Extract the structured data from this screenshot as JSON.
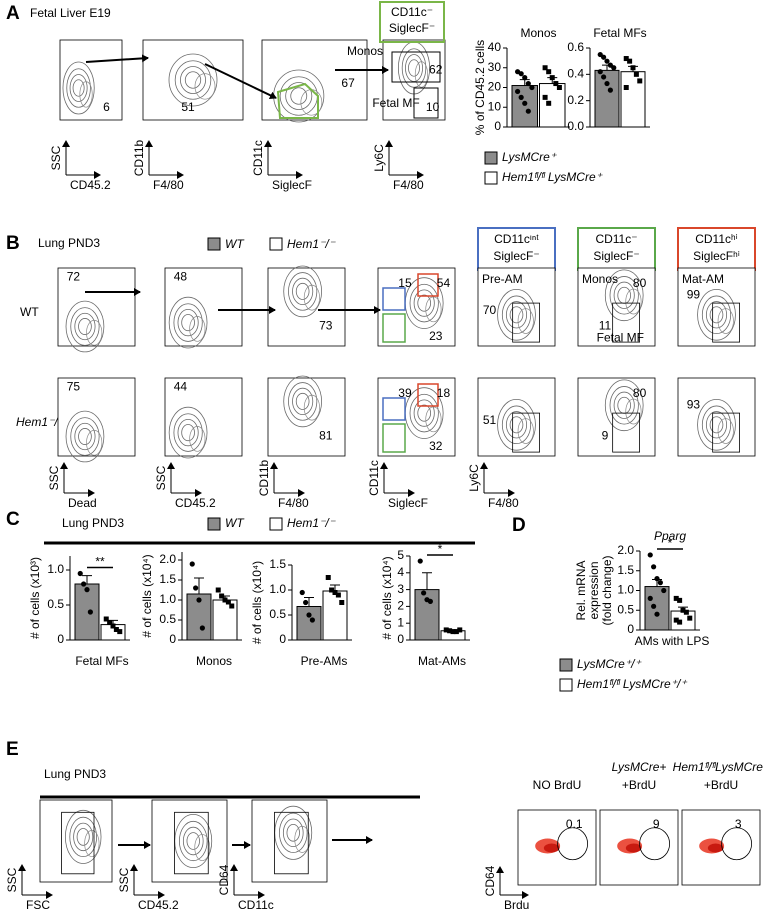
{
  "panel_a": {
    "letter": "A",
    "title": "Fetal Liver  E19",
    "plots": [
      {
        "y": "SSC",
        "x": "CD45.2",
        "gates": [
          6
        ]
      },
      {
        "y": "CD11b",
        "x": "F4/80",
        "gates": [
          51
        ]
      },
      {
        "y": "CD11c",
        "x": "SiglecF",
        "gates": [
          67
        ]
      },
      {
        "y": "Ly6C",
        "x": "F4/80",
        "gates": [
          62,
          10
        ]
      }
    ],
    "population_labels": [
      "Monos",
      "Fetal MF"
    ],
    "box": {
      "lines": [
        "CD11c⁻",
        "SiglecF⁻"
      ],
      "color": "#7ab648"
    }
  },
  "panel_b": {
    "letter": "B",
    "title": "Lung PND3",
    "legend": [
      "WT",
      "Hem1⁻/⁻"
    ],
    "row_labels": [
      "WT",
      "Hem1⁻/⁻"
    ],
    "axes": [
      {
        "y": "SSC",
        "x": "Dead"
      },
      {
        "y": "SSC",
        "x": "CD45.2"
      },
      {
        "y": "CD11b",
        "x": "F4/80"
      },
      {
        "y": "CD11c",
        "x": "SiglecF"
      },
      {
        "y": "Ly6C",
        "x": "F4/80"
      }
    ],
    "boxes": [
      {
        "lines": [
          "CD11cᶦⁿᵗ",
          "SiglecF⁻"
        ],
        "color": "#4a6fc1"
      },
      {
        "lines": [
          "CD11c⁻",
          "SiglecF⁻"
        ],
        "color": "#5aa84a"
      },
      {
        "lines": [
          "CD11cʰⁱ",
          "SiglecFʰⁱ"
        ],
        "color": "#d9472b"
      }
    ],
    "plot_titles": [
      "Pre-AM",
      "Monos",
      "Mat-AM"
    ],
    "fetal_mf": "Fetal MF",
    "gates": [
      [
        [
          72
        ],
        [
          48
        ],
        [
          73
        ],
        [
          15,
          54,
          23
        ],
        [
          70
        ],
        [
          80,
          11
        ],
        [
          99
        ]
      ],
      [
        [
          75
        ],
        [
          44
        ],
        [
          81
        ],
        [
          39,
          18,
          32
        ],
        [
          51
        ],
        [
          80,
          9
        ],
        [
          93
        ]
      ]
    ]
  },
  "panel_c": {
    "letter": "C",
    "title": "Lung PND3"
  },
  "panel_d": {
    "letter": "D"
  },
  "panel_e": {
    "letter": "E",
    "title": "Lung PND3",
    "axes": [
      {
        "y": "SSC",
        "x": "FSC"
      },
      {
        "y": "SSC",
        "x": "CD45.2"
      },
      {
        "y": "CD64",
        "x": "CD11c"
      },
      {
        "y": "CD64",
        "x": "Brdu"
      }
    ],
    "brdu_titles": [
      [
        "NO BrdU"
      ],
      [
        "LysMCre+",
        "+BrdU"
      ],
      [
        "Hem1ᶠˡ/ᶠˡLysMCre⁺",
        "+BrdU"
      ]
    ],
    "gates": [
      0.1,
      9,
      3
    ]
  },
  "chart_data": [
    {
      "type": "bar",
      "title": "Monos",
      "ylabel": [
        "% of CD45.2 cells"
      ],
      "ylim": [
        0,
        40
      ],
      "yticks": [
        0,
        10,
        20,
        30,
        40
      ],
      "series": [
        {
          "name": "LysMCre⁺",
          "color": "#8c8c8c",
          "values": [
            21
          ],
          "errors": [
            3
          ],
          "points": [
            [
              28,
              27,
              25,
              22,
              20,
              18,
              15,
              12,
              8
            ]
          ]
        },
        {
          "name": "Hem1ᶠˡ/ᶠˡ LysMCre⁺",
          "color": "#ffffff",
          "values": [
            22
          ],
          "errors": [
            3
          ],
          "points": [
            [
              30,
              28,
              25,
              22,
              20,
              15,
              12
            ]
          ]
        }
      ]
    },
    {
      "type": "bar",
      "title": "Fetal MFs",
      "ylim": [
        0,
        0.6
      ],
      "yticks": [
        {
          "value": 0,
          "label": "0.0"
        },
        0.2,
        0.4,
        0.6
      ],
      "series": [
        {
          "color": "#8c8c8c",
          "values": [
            0.43
          ],
          "errors": [
            0.04
          ],
          "points": [
            [
              0.55,
              0.53,
              0.5,
              0.47,
              0.45,
              0.42,
              0.38,
              0.33,
              0.28
            ]
          ]
        },
        {
          "color": "#ffffff",
          "values": [
            0.42
          ],
          "errors": [
            0.04
          ],
          "points": [
            [
              0.52,
              0.5,
              0.45,
              0.4,
              0.35,
              0.3
            ]
          ]
        }
      ]
    },
    {
      "type": "bar",
      "categories": [
        "Fetal MFs"
      ],
      "ylabel": [
        "# of cells (x10³)"
      ],
      "ylim": [
        0,
        1.2
      ],
      "yticks": [
        0,
        0.5,
        {
          "value": 1,
          "label": "1.0"
        }
      ],
      "sig": "**",
      "series": [
        {
          "name": "WT",
          "color": "#8c8c8c",
          "values": [
            0.8
          ],
          "errors": [
            0.12
          ],
          "points": [
            [
              0.95,
              0.8,
              0.72,
              0.4
            ]
          ]
        },
        {
          "name": "Hem1⁻/⁻",
          "color": "#ffffff",
          "values": [
            0.22
          ],
          "errors": [
            0.06
          ],
          "points": [
            [
              0.3,
              0.25,
              0.2,
              0.15,
              0.12
            ]
          ]
        }
      ]
    },
    {
      "type": "bar",
      "categories": [
        "Monos"
      ],
      "ylabel": [
        "# of cells (x10⁴)"
      ],
      "ylim": [
        0,
        2.2
      ],
      "yticks": [
        0,
        0.5,
        {
          "value": 1,
          "label": "1.0"
        },
        1.5,
        {
          "value": 2,
          "label": "2.0"
        }
      ],
      "series": [
        {
          "color": "#8c8c8c",
          "values": [
            1.15
          ],
          "errors": [
            0.4
          ],
          "points": [
            [
              1.9,
              1.3,
              1.0,
              0.3
            ]
          ]
        },
        {
          "color": "#ffffff",
          "values": [
            1.0
          ],
          "errors": [
            0.1
          ],
          "points": [
            [
              1.25,
              1.1,
              1.0,
              0.95,
              0.85
            ]
          ]
        }
      ]
    },
    {
      "type": "bar",
      "categories": [
        "Pre-AMs"
      ],
      "ylabel": [
        "# of cells (x10⁴)"
      ],
      "ylim": [
        0,
        1.5
      ],
      "yticks": [
        0,
        0.5,
        {
          "value": 1,
          "label": "1.0"
        },
        1.5
      ],
      "series": [
        {
          "color": "#8c8c8c",
          "values": [
            0.67
          ],
          "errors": [
            0.18
          ],
          "points": [
            [
              0.95,
              0.75,
              0.5,
              0.4
            ]
          ]
        },
        {
          "color": "#ffffff",
          "values": [
            0.98
          ],
          "errors": [
            0.12
          ],
          "points": [
            [
              1.25,
              1.0,
              0.95,
              0.9,
              0.75
            ]
          ]
        }
      ]
    },
    {
      "type": "bar",
      "categories": [
        "Mat-AMs"
      ],
      "ylabel": [
        "# of cells (x10⁴)"
      ],
      "ylim": [
        0,
        5
      ],
      "yticks": [
        0,
        1,
        2,
        3,
        4,
        5
      ],
      "sig": "*",
      "series": [
        {
          "color": "#8c8c8c",
          "values": [
            3.0
          ],
          "errors": [
            1.0
          ],
          "points": [
            [
              4.7,
              2.8,
              2.4,
              2.3
            ]
          ]
        },
        {
          "color": "#ffffff",
          "values": [
            0.55
          ],
          "errors": [
            0.05
          ],
          "points": [
            [
              0.6,
              0.55,
              0.5,
              0.5,
              0.6
            ]
          ]
        }
      ]
    },
    {
      "type": "bar",
      "title": "Pparg",
      "xlabel": "AMs with LPS",
      "ylabel": [
        "Rel. mRNA",
        "expression",
        "(fold change)"
      ],
      "ylim": [
        0,
        2
      ],
      "yticks": [
        0,
        0.5,
        {
          "value": 1,
          "label": "1.0"
        },
        1.5,
        {
          "value": 2,
          "label": "2.0"
        }
      ],
      "sig": "*",
      "series": [
        {
          "name": "LysMCre⁺/⁺",
          "color": "#8c8c8c",
          "values": [
            1.1
          ],
          "errors": [
            0.18
          ],
          "points": [
            [
              1.9,
              1.6,
              1.3,
              1.2,
              1.0,
              0.8,
              0.6,
              0.4
            ]
          ]
        },
        {
          "name": "Hem1ᶠˡ/ᶠˡ LysMCre⁺/⁺",
          "color": "#ffffff",
          "values": [
            0.48
          ],
          "errors": [
            0.1
          ],
          "points": [
            [
              0.8,
              0.75,
              0.5,
              0.45,
              0.3,
              0.25,
              0.2
            ]
          ]
        }
      ]
    }
  ]
}
